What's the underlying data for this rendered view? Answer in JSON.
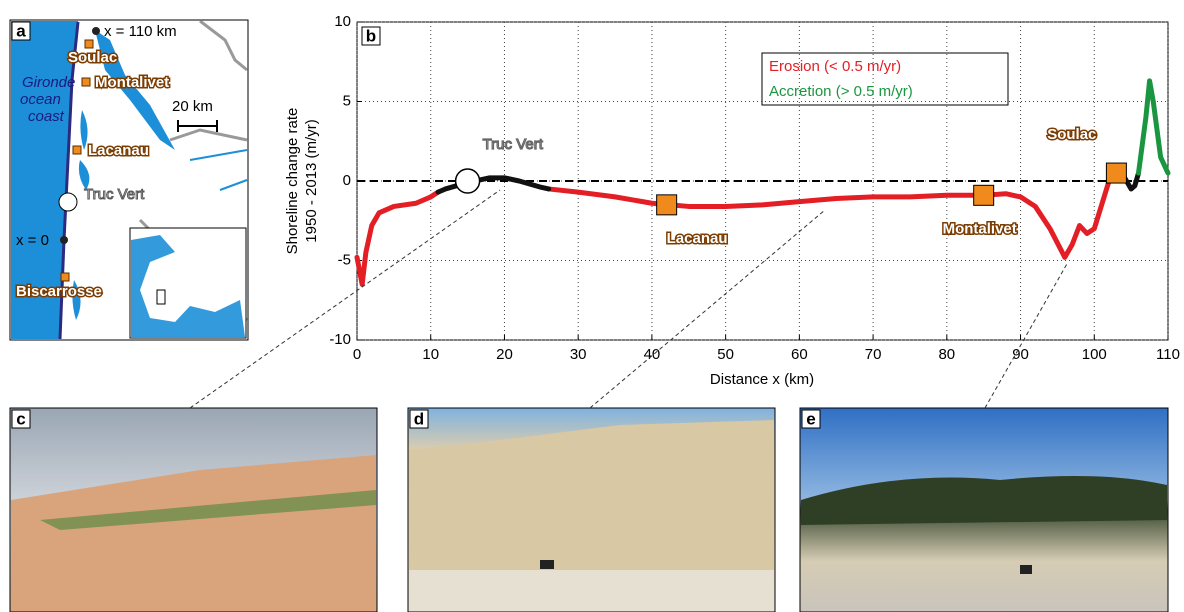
{
  "map": {
    "panel_label": "a",
    "x_end_label": "x = 110 km",
    "soulac": "Soulac",
    "montalivet": "Montalivet",
    "ocean_line1": "Gironde",
    "ocean_line2": "ocean",
    "ocean_line3": "coast",
    "scale_label": "20 km",
    "lacanau": "Lacanau",
    "truc_vert": "Truc Vert",
    "x_start_label": "x = 0",
    "biscarrosse": "Biscarrosse"
  },
  "photos": [
    "c",
    "d",
    "e"
  ],
  "chart_data": {
    "type": "line",
    "panel_label": "b",
    "x_label": "Distance x (km)",
    "y_label_line1": "Shoreline change rate",
    "y_label_line2": "1950 - 2013 (m/yr)",
    "xlim": [
      0,
      110
    ],
    "xticks": [
      0,
      10,
      20,
      30,
      40,
      50,
      60,
      70,
      80,
      90,
      100,
      110
    ],
    "ylim": [
      -10,
      10
    ],
    "yticks": [
      -10,
      -5,
      0,
      5,
      10
    ],
    "grid": true,
    "hline": 0,
    "legend": "top-right",
    "x": [
      0,
      0.7,
      1.2,
      2,
      3,
      5,
      8,
      10,
      11,
      12,
      15,
      18,
      20,
      22,
      25,
      26,
      30,
      35,
      40,
      45,
      50,
      55,
      60,
      65,
      70,
      75,
      80,
      85,
      88,
      90,
      92,
      94,
      96,
      97,
      98,
      99,
      100,
      101,
      102,
      103,
      104,
      105,
      105.5,
      106,
      107,
      107.5,
      108,
      109,
      110
    ],
    "series": [
      {
        "name": "Erosion (< 0.5 m/yr)",
        "color": "#e31e24",
        "values": [
          -4.8,
          -6.5,
          -4.5,
          -2.8,
          -2,
          -1.6,
          -1.4,
          -1.0,
          -0.7,
          null,
          null,
          null,
          null,
          null,
          null,
          -0.5,
          -0.7,
          -1.0,
          -1.4,
          -1.6,
          -1.6,
          -1.5,
          -1.3,
          -1.1,
          -1.0,
          -1.0,
          -0.9,
          -0.9,
          -0.8,
          -1.0,
          -1.6,
          -3.0,
          -4.8,
          -4.0,
          -2.8,
          -3.3,
          -3.0,
          -1.5,
          0,
          0.5,
          0.3,
          null,
          null,
          null,
          null,
          null,
          null,
          null,
          null
        ]
      },
      {
        "color": "#111111",
        "values": [
          null,
          null,
          null,
          null,
          null,
          null,
          null,
          null,
          -0.7,
          -0.5,
          -0.1,
          0.2,
          0.2,
          0,
          -0.4,
          -0.5,
          null,
          null,
          null,
          null,
          null,
          null,
          null,
          null,
          null,
          null,
          null,
          null,
          null,
          null,
          null,
          null,
          null,
          null,
          null,
          null,
          null,
          null,
          null,
          null,
          0.3,
          -0.5,
          -0.3,
          0.5,
          null,
          null,
          null,
          null,
          null
        ]
      },
      {
        "name": "Accretion (> 0.5 m/yr)",
        "color": "#1a9641",
        "values": [
          null,
          null,
          null,
          null,
          null,
          null,
          null,
          null,
          null,
          null,
          null,
          null,
          null,
          null,
          null,
          null,
          null,
          null,
          null,
          null,
          null,
          null,
          null,
          null,
          null,
          null,
          null,
          null,
          null,
          null,
          null,
          null,
          null,
          null,
          null,
          null,
          null,
          null,
          null,
          null,
          null,
          null,
          null,
          0.5,
          4,
          6.3,
          5,
          1.5,
          0.5
        ]
      }
    ],
    "sites": [
      {
        "name": "Truc Vert",
        "x": 15,
        "y": 0,
        "marker": "circle"
      },
      {
        "name": "Lacanau",
        "x": 42,
        "y": -1.5,
        "marker": "square"
      },
      {
        "name": "Montalivet",
        "x": 85,
        "y": -0.9,
        "marker": "square"
      },
      {
        "name": "Soulac",
        "x": 103,
        "y": 0.5,
        "marker": "square"
      }
    ]
  }
}
